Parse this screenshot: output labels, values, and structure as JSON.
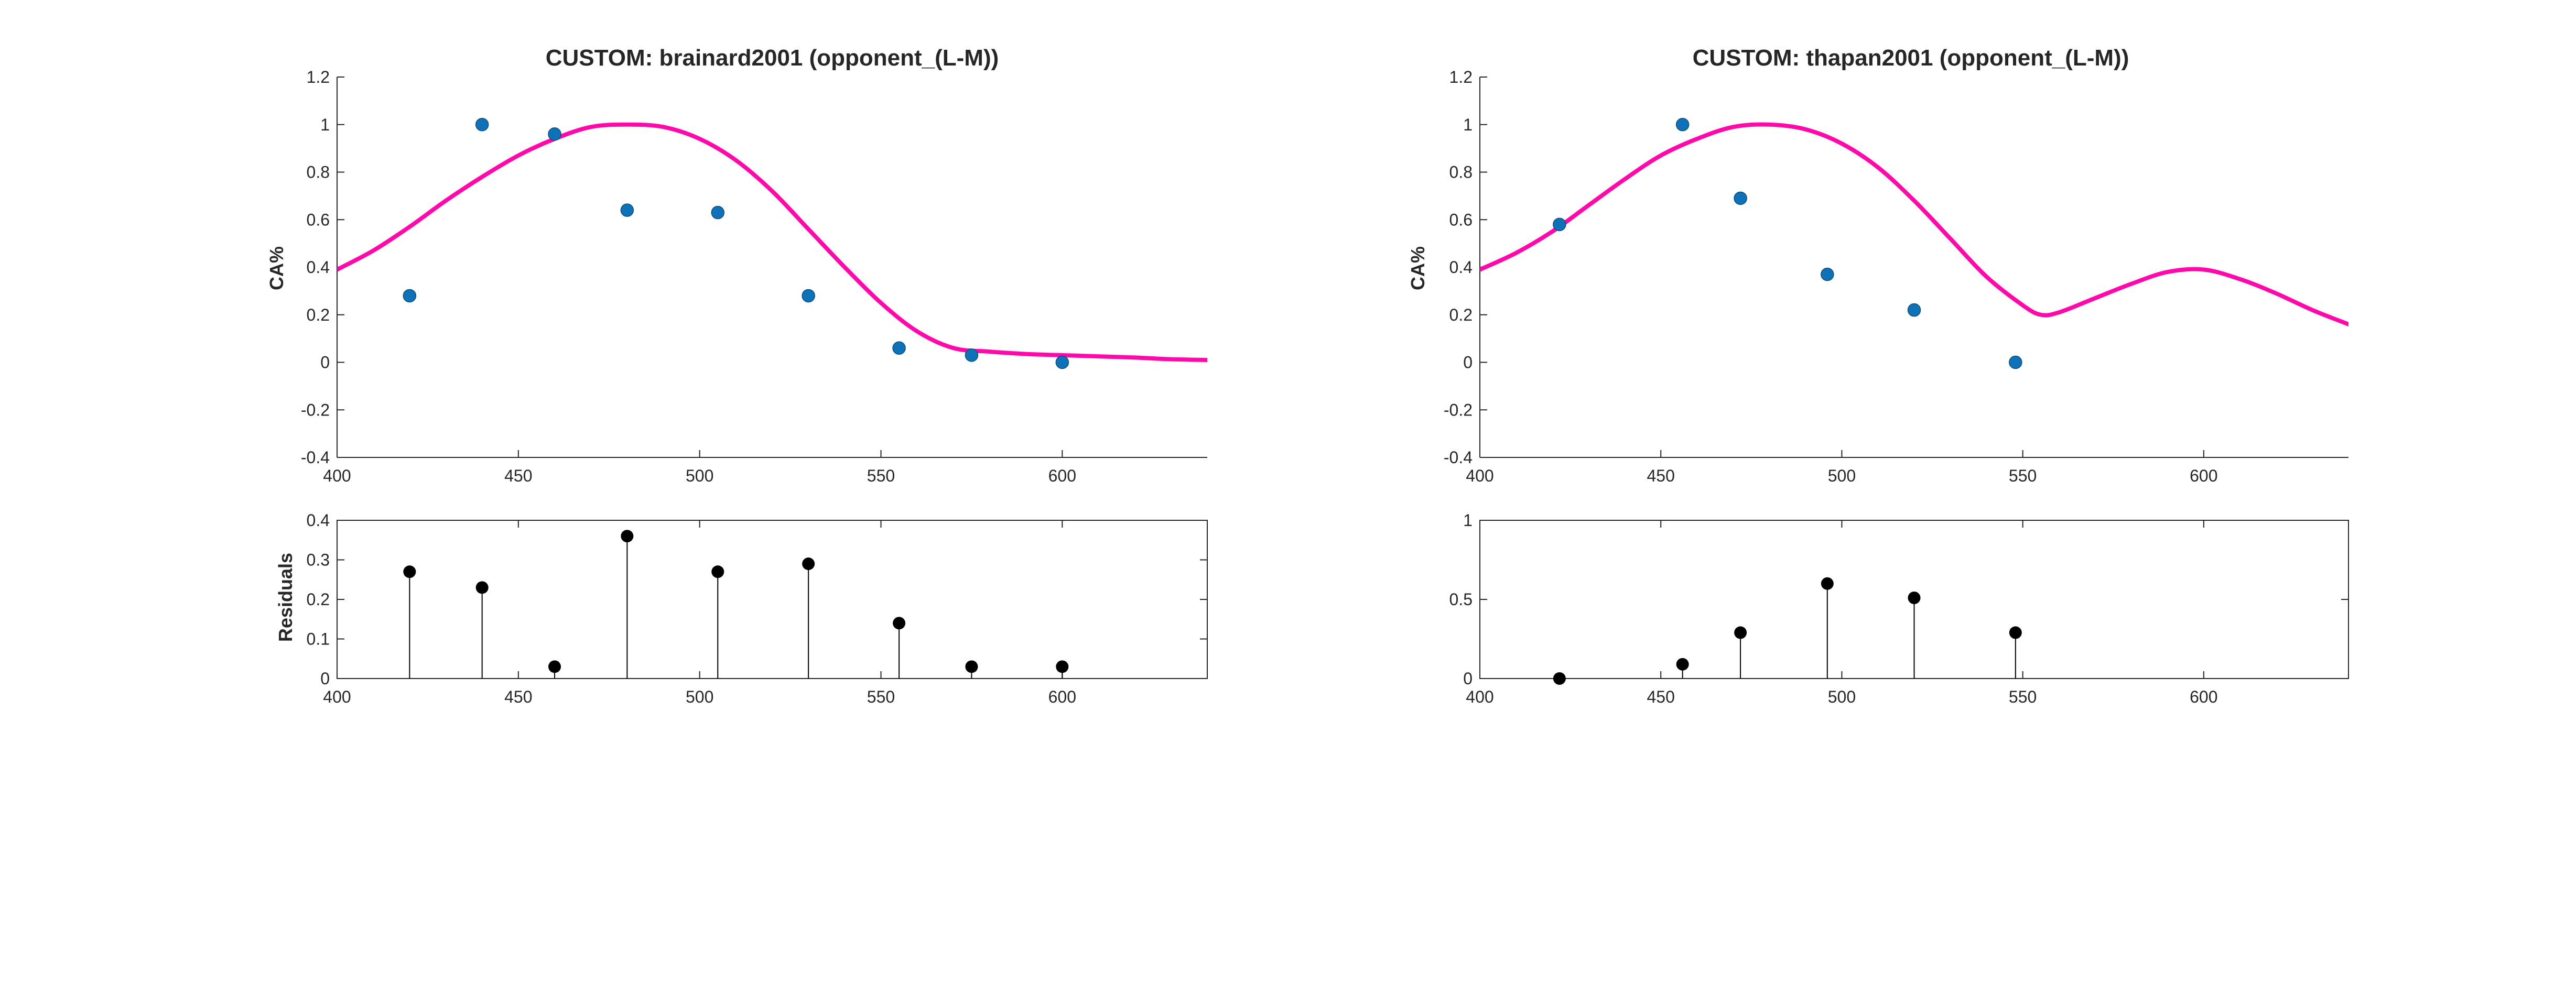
{
  "colors": {
    "fit": "#ff0aaa",
    "data": "#0f72b8",
    "residual": "#000000"
  },
  "panels": [
    {
      "title": "CUSTOM: brainard2001 (opponent_(L-M))",
      "main": {
        "ylabel": "CA%",
        "xlim": [
          400,
          640
        ],
        "ylim": [
          -0.4,
          1.2
        ],
        "xticks": [
          400,
          450,
          500,
          550,
          600
        ],
        "yticks": [
          -0.4,
          -0.2,
          0,
          0.2,
          0.4,
          0.6,
          0.8,
          1,
          1.2
        ],
        "xtick_labels": [
          "400",
          "450",
          "500",
          "550",
          "600"
        ],
        "ytick_labels": [
          "-0.4",
          "-0.2",
          "0",
          "0.2",
          "0.4",
          "0.6",
          "0.8",
          "1",
          "1.2"
        ]
      },
      "residuals": {
        "ylabel": "Residuals",
        "xlim": [
          400,
          640
        ],
        "ylim": [
          0,
          0.4
        ],
        "xticks": [
          400,
          450,
          500,
          550,
          600
        ],
        "yticks": [
          0,
          0.1,
          0.2,
          0.3,
          0.4
        ],
        "xtick_labels": [
          "400",
          "450",
          "500",
          "550",
          "600"
        ],
        "ytick_labels": [
          "0",
          "0.1",
          "0.2",
          "0.3",
          "0.4"
        ]
      }
    },
    {
      "title": "CUSTOM: thapan2001 (opponent_(L-M))",
      "main": {
        "ylabel": "CA%",
        "xlim": [
          400,
          640
        ],
        "ylim": [
          -0.4,
          1.2
        ],
        "xticks": [
          400,
          450,
          500,
          550,
          600
        ],
        "yticks": [
          -0.4,
          -0.2,
          0,
          0.2,
          0.4,
          0.6,
          0.8,
          1,
          1.2
        ],
        "xtick_labels": [
          "400",
          "450",
          "500",
          "550",
          "600"
        ],
        "ytick_labels": [
          "-0.4",
          "-0.2",
          "0",
          "0.2",
          "0.4",
          "0.6",
          "0.8",
          "1",
          "1.2"
        ]
      },
      "residuals": {
        "ylabel": "",
        "xlim": [
          400,
          640
        ],
        "ylim": [
          0,
          1
        ],
        "xticks": [
          400,
          450,
          500,
          550,
          600
        ],
        "yticks": [
          0,
          0.5,
          1
        ],
        "xtick_labels": [
          "400",
          "450",
          "500",
          "550",
          "600"
        ],
        "ytick_labels": [
          "0",
          "0.5",
          "1"
        ]
      }
    }
  ],
  "chart_data": [
    {
      "type": "scatter",
      "title": "CUSTOM: brainard2001 (opponent_(L-M))",
      "xlabel": "",
      "ylabel": "CA%",
      "xlim": [
        400,
        640
      ],
      "ylim": [
        -0.4,
        1.2
      ],
      "grid": false,
      "series": [
        {
          "kind": "points",
          "x": [
            420,
            440,
            460,
            480,
            505,
            530,
            555,
            575,
            600
          ],
          "y": [
            0.28,
            1.0,
            0.96,
            0.64,
            0.63,
            0.28,
            0.06,
            0.03,
            0.0
          ]
        },
        {
          "kind": "line",
          "x": [
            400,
            410,
            420,
            430,
            440,
            450,
            460,
            470,
            480,
            490,
            500,
            510,
            520,
            530,
            540,
            550,
            560,
            570,
            580,
            590,
            600,
            610,
            620,
            630,
            640
          ],
          "y": [
            0.39,
            0.47,
            0.57,
            0.68,
            0.78,
            0.87,
            0.94,
            0.99,
            1.0,
            0.99,
            0.94,
            0.85,
            0.72,
            0.56,
            0.4,
            0.25,
            0.13,
            0.06,
            0.045,
            0.035,
            0.03,
            0.025,
            0.02,
            0.013,
            0.01
          ]
        }
      ]
    },
    {
      "type": "bar",
      "subtype": "stem",
      "title": "",
      "xlabel": "",
      "ylabel": "Residuals",
      "xlim": [
        400,
        640
      ],
      "ylim": [
        0,
        0.4
      ],
      "grid": false,
      "x": [
        420,
        440,
        460,
        480,
        505,
        530,
        555,
        575,
        600
      ],
      "values": [
        0.27,
        0.23,
        0.03,
        0.36,
        0.27,
        0.29,
        0.14,
        0.03,
        0.03
      ]
    },
    {
      "type": "scatter",
      "title": "CUSTOM: thapan2001 (opponent_(L-M))",
      "xlabel": "",
      "ylabel": "CA%",
      "xlim": [
        400,
        640
      ],
      "ylim": [
        -0.4,
        1.2
      ],
      "grid": false,
      "series": [
        {
          "kind": "points",
          "x": [
            422,
            456,
            472,
            496,
            520,
            548
          ],
          "y": [
            0.58,
            1.0,
            0.69,
            0.37,
            0.22,
            0.0
          ]
        },
        {
          "kind": "line",
          "x": [
            400,
            410,
            420,
            430,
            440,
            450,
            460,
            470,
            480,
            490,
            500,
            510,
            520,
            530,
            540,
            550,
            555,
            560,
            570,
            580,
            590,
            600,
            610,
            620,
            630,
            640
          ],
          "y": [
            0.39,
            0.46,
            0.55,
            0.66,
            0.77,
            0.87,
            0.94,
            0.99,
            1.0,
            0.98,
            0.92,
            0.82,
            0.68,
            0.52,
            0.36,
            0.24,
            0.2,
            0.21,
            0.27,
            0.33,
            0.38,
            0.39,
            0.35,
            0.29,
            0.22,
            0.16
          ]
        }
      ]
    },
    {
      "type": "bar",
      "subtype": "stem",
      "title": "",
      "xlabel": "",
      "ylabel": "",
      "xlim": [
        400,
        640
      ],
      "ylim": [
        0,
        1
      ],
      "grid": false,
      "x": [
        422,
        456,
        472,
        496,
        520,
        548
      ],
      "values": [
        0.0,
        0.09,
        0.29,
        0.6,
        0.51,
        0.29
      ]
    }
  ]
}
